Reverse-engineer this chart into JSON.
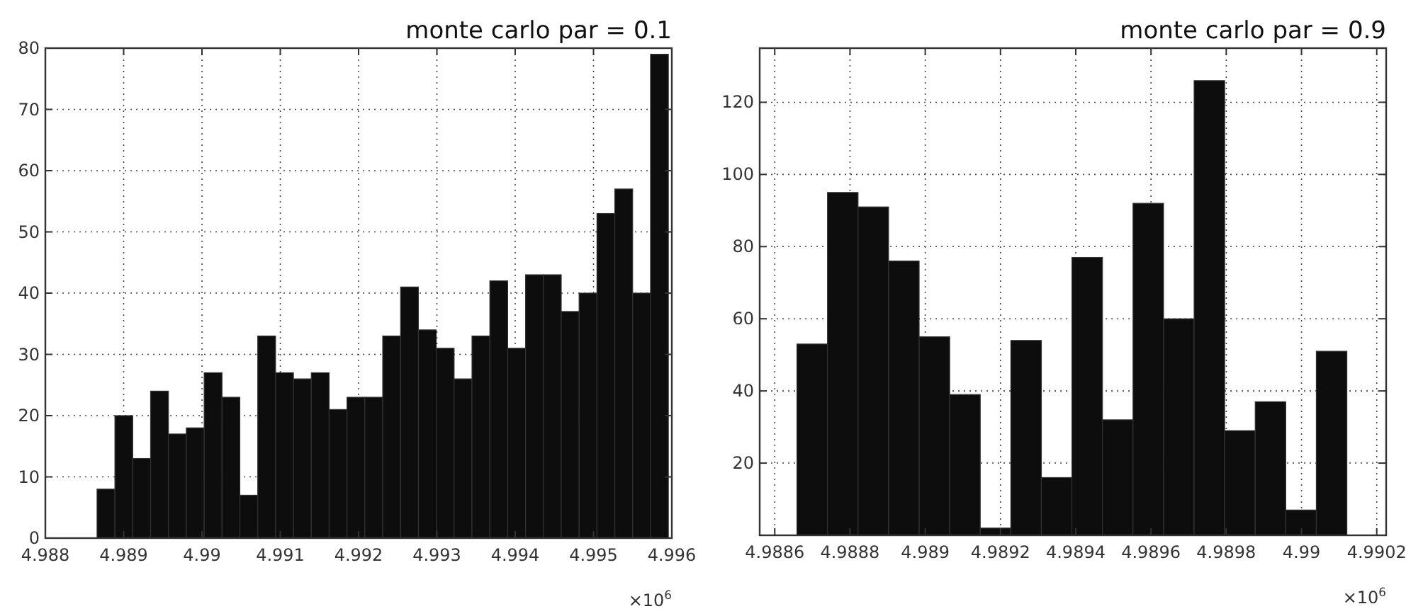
{
  "chart_data": [
    {
      "type": "histogram",
      "title": "monte carlo par = 0.1",
      "bins": [
        4.98866,
        4.988888,
        4.989116,
        4.989344,
        4.989572,
        4.9898,
        4.990028,
        4.990256,
        4.990484,
        4.990712,
        4.99094,
        4.991168,
        4.991396,
        4.991624,
        4.991852,
        4.99208,
        4.992308,
        4.992536,
        4.992764,
        4.992992,
        4.99322,
        4.993448,
        4.993676,
        4.993904,
        4.994132,
        4.99436,
        4.994588,
        4.994816,
        4.995044,
        4.995272,
        4.9955,
        4.995728,
        4.995956
      ],
      "values": [
        8,
        20,
        13,
        24,
        17,
        18,
        27,
        23,
        7,
        33,
        27,
        26,
        27,
        21,
        23,
        23,
        33,
        41,
        34,
        31,
        26,
        33,
        42,
        31,
        43,
        43,
        37,
        40,
        53,
        57,
        40,
        79
      ],
      "color": "#0d0d0d",
      "xlim": [
        4.988,
        4.996
      ],
      "xticks": [
        4.988,
        4.989,
        4.99,
        4.991,
        4.992,
        4.993,
        4.994,
        4.995,
        4.996
      ],
      "ylim": [
        0,
        80
      ],
      "yticks": [
        0,
        10,
        20,
        30,
        40,
        50,
        60,
        70,
        80
      ],
      "grid": true,
      "line_style": "dotted",
      "annotations": [
        "×10$^{6}$"
      ]
    },
    {
      "type": "histogram",
      "title": "monte carlo par = 0.9",
      "bins": [
        4.988659,
        4.9887402,
        4.9888214,
        4.9889026,
        4.9889838,
        4.989065,
        4.9891462,
        4.9892274,
        4.9893086,
        4.9893898,
        4.989471,
        4.9895522,
        4.9896334,
        4.9897146,
        4.9897958,
        4.989877,
        4.9899582,
        4.9900394,
        4.9901206
      ],
      "values": [
        53,
        95,
        91,
        76,
        55,
        39,
        2,
        54,
        16,
        77,
        32,
        92,
        60,
        126,
        29,
        37,
        7,
        51
      ],
      "color": "#0d0d0d",
      "xlim": [
        4.98856,
        4.990225
      ],
      "xticks": [
        4.9886,
        4.9888,
        4.989,
        4.9892,
        4.9894,
        4.9896,
        4.9898,
        4.99,
        4.9902
      ],
      "ylim": [
        0,
        135
      ],
      "yticks": [
        20,
        40,
        60,
        80,
        100,
        120
      ],
      "grid": true,
      "line_style": "dotted",
      "annotations": [
        "×10$^{6}$"
      ]
    }
  ]
}
